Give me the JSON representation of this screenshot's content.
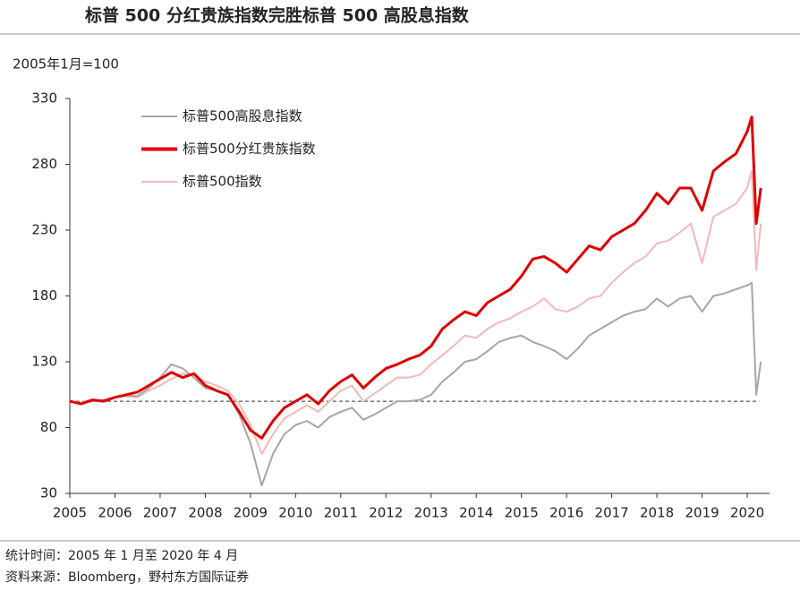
{
  "chart_data": {
    "type": "line",
    "title": "标普 500 分红贵族指数完胜标普 500 高股息指数",
    "y_label": "2005年1月=100",
    "footnotes": [
      "统计时间：2005 年 1 月至 2020 年 4 月",
      "资料来源：Bloomberg，野村东方国际证券"
    ],
    "x": [
      2005,
      2005.25,
      2005.5,
      2005.75,
      2006,
      2006.25,
      2006.5,
      2006.75,
      2007,
      2007.25,
      2007.5,
      2007.75,
      2008,
      2008.25,
      2008.5,
      2008.75,
      2009,
      2009.25,
      2009.5,
      2009.75,
      2010,
      2010.25,
      2010.5,
      2010.75,
      2011,
      2011.25,
      2011.5,
      2011.75,
      2012,
      2012.25,
      2012.5,
      2012.75,
      2013,
      2013.25,
      2013.5,
      2013.75,
      2014,
      2014.25,
      2014.5,
      2014.75,
      2015,
      2015.25,
      2015.5,
      2015.75,
      2016,
      2016.25,
      2016.5,
      2016.75,
      2017,
      2017.25,
      2017.5,
      2017.75,
      2018,
      2018.25,
      2018.5,
      2018.75,
      2019,
      2019.25,
      2019.5,
      2019.75,
      2020,
      2020.1,
      2020.2,
      2020.3
    ],
    "series": [
      {
        "name": "标普500高股息指数",
        "color": "#a6a6a6",
        "values": [
          100,
          98,
          100,
          101,
          103,
          104,
          104,
          110,
          118,
          128,
          125,
          118,
          110,
          108,
          105,
          90,
          68,
          36,
          60,
          75,
          82,
          85,
          80,
          88,
          92,
          95,
          86,
          90,
          95,
          100,
          100,
          101,
          105,
          115,
          122,
          130,
          132,
          138,
          145,
          148,
          150,
          145,
          142,
          138,
          132,
          140,
          150,
          155,
          160,
          165,
          168,
          170,
          178,
          172,
          178,
          180,
          168,
          180,
          182,
          185,
          188,
          190,
          105,
          130
        ]
      },
      {
        "name": "标普500分红贵族指数",
        "color": "#e00000",
        "values": [
          100,
          98,
          101,
          100,
          103,
          105,
          107,
          112,
          117,
          122,
          118,
          121,
          112,
          108,
          105,
          92,
          78,
          72,
          85,
          95,
          100,
          105,
          98,
          108,
          115,
          120,
          110,
          118,
          125,
          128,
          132,
          135,
          142,
          155,
          162,
          168,
          165,
          175,
          180,
          185,
          195,
          208,
          210,
          205,
          198,
          208,
          218,
          215,
          225,
          230,
          235,
          245,
          258,
          250,
          262,
          262,
          245,
          275,
          282,
          288,
          305,
          316,
          235,
          262
        ]
      },
      {
        "name": "标普500指数",
        "color": "#f4b8b8",
        "values": [
          100,
          99,
          101,
          101,
          103,
          104,
          103,
          108,
          112,
          117,
          121,
          120,
          115,
          112,
          108,
          98,
          82,
          60,
          75,
          87,
          92,
          97,
          92,
          100,
          108,
          112,
          100,
          106,
          112,
          118,
          118,
          120,
          128,
          135,
          142,
          150,
          148,
          155,
          160,
          163,
          168,
          172,
          178,
          170,
          168,
          172,
          178,
          180,
          190,
          198,
          205,
          210,
          220,
          222,
          228,
          235,
          205,
          240,
          245,
          250,
          262,
          275,
          200,
          235
        ]
      }
    ],
    "xlim": [
      2005,
      2020.5
    ],
    "xticks": [
      2005,
      2006,
      2007,
      2008,
      2009,
      2010,
      2011,
      2012,
      2013,
      2014,
      2015,
      2016,
      2017,
      2018,
      2019,
      2020
    ],
    "ylim": [
      30,
      330
    ],
    "yticks": [
      30,
      80,
      130,
      180,
      230,
      280,
      330
    ],
    "hline": 100,
    "grid": false,
    "legend": "upper left"
  }
}
